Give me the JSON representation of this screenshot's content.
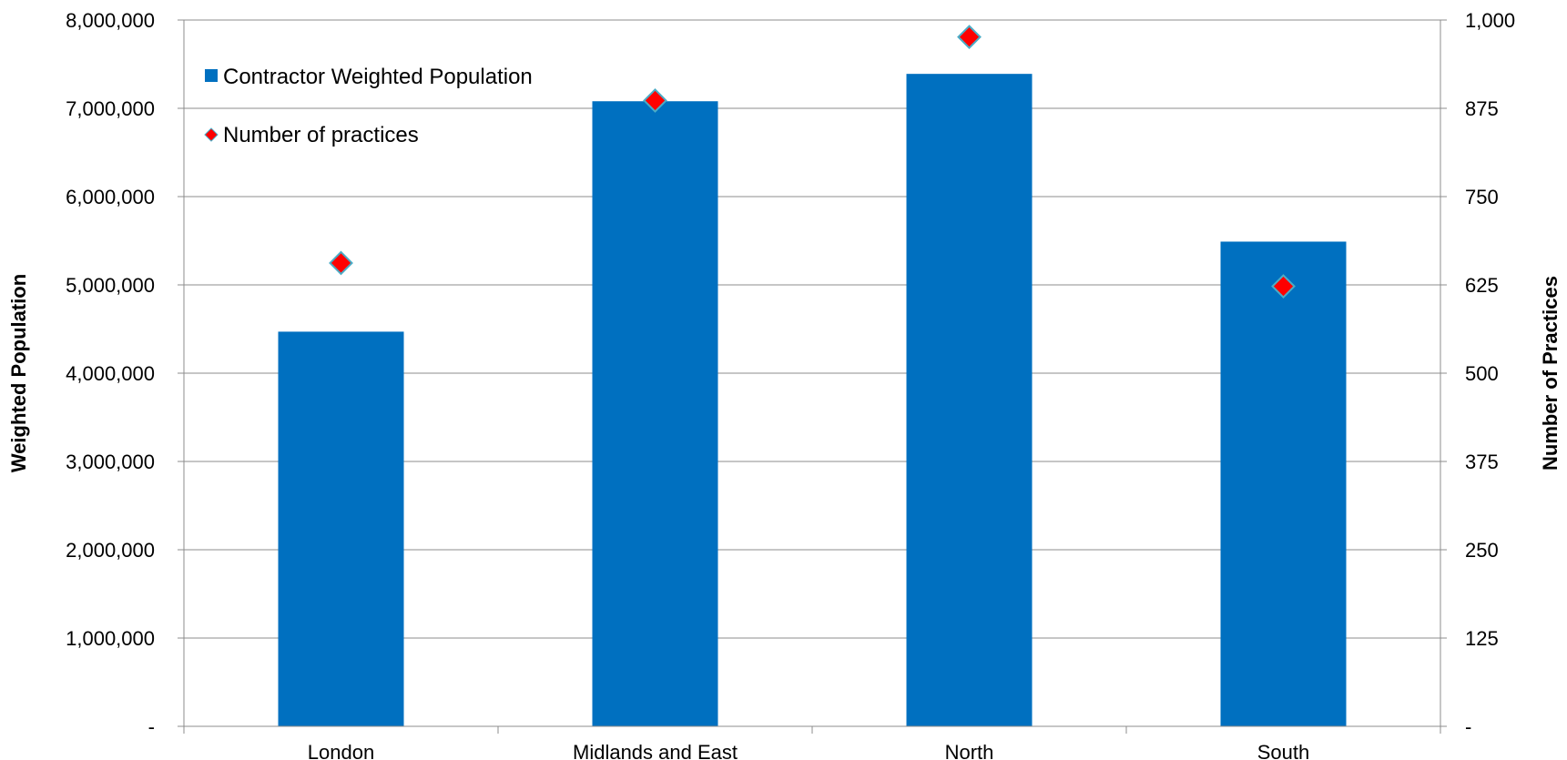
{
  "chart_data": {
    "type": "bar",
    "categories": [
      "London",
      "Midlands and East",
      "North",
      "South"
    ],
    "series": [
      {
        "name": "Contractor Weighted Population",
        "type": "bar",
        "axis": "left",
        "color": "#0070C0",
        "values": [
          4470000,
          7080000,
          7390000,
          5490000
        ]
      },
      {
        "name": "Number of practices",
        "type": "scatter",
        "marker": "diamond",
        "axis": "right",
        "color": "#FF0000",
        "marker_border_color": "#4BACC6",
        "values": [
          656,
          886,
          976,
          623
        ]
      }
    ],
    "ylabel": "Weighted Population",
    "y2label": "Number of Practices",
    "ylim": [
      0,
      8000000
    ],
    "y2lim": [
      0,
      1000
    ],
    "yticks": [
      "-",
      "1,000,000",
      "2,000,000",
      "3,000,000",
      "4,000,000",
      "5,000,000",
      "6,000,000",
      "7,000,000",
      "8,000,000"
    ],
    "y2ticks": [
      "-",
      "125",
      "250",
      "375",
      "500",
      "625",
      "750",
      "875",
      "1,000"
    ],
    "grid": true,
    "legend_position": "top-left"
  }
}
